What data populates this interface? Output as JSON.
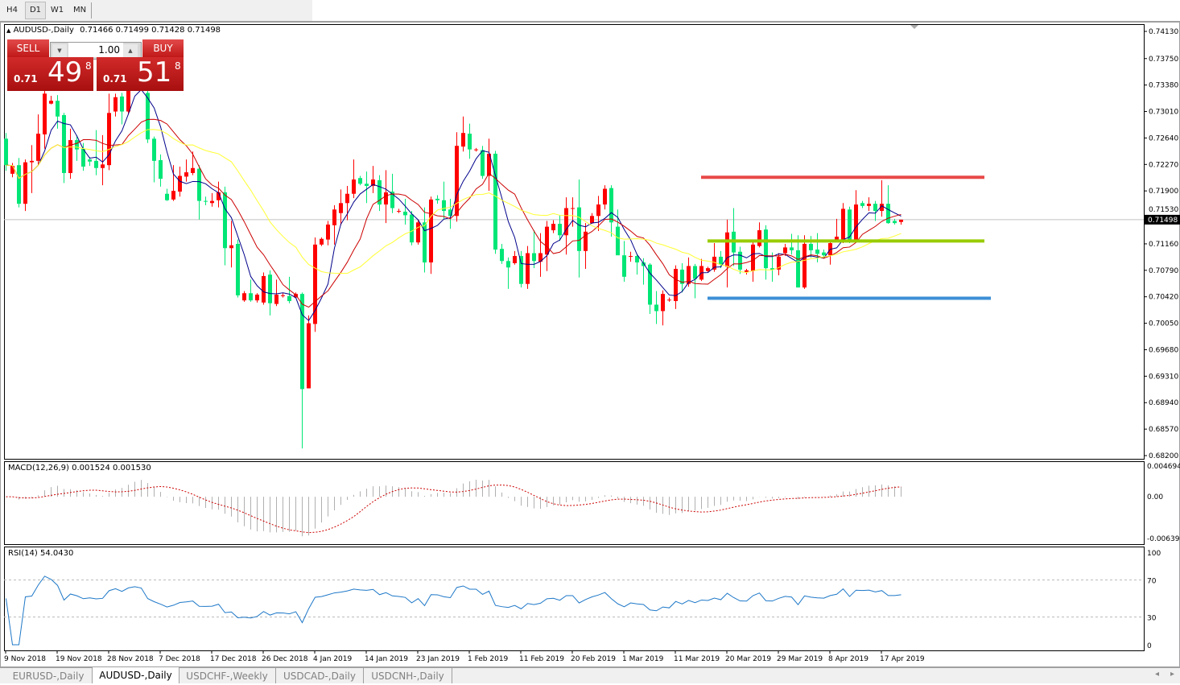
{
  "timeframes": {
    "items": [
      "H4",
      "D1",
      "W1",
      "MN"
    ],
    "active": "D1"
  },
  "chart_header": {
    "symbol": "AUDUSD-,Daily",
    "ohlc": "0.71466 0.71499 0.71428 0.71498"
  },
  "trade_panel": {
    "sell_label": "SELL",
    "buy_label": "BUY",
    "lot": "1.00",
    "sell_price": {
      "prefix": "0.71",
      "big": "49",
      "sup": "8"
    },
    "buy_price": {
      "prefix": "0.71",
      "big": "51",
      "sup": "8"
    }
  },
  "colors": {
    "bull": "#ff0000",
    "bear": "#00e676",
    "ma_fast": "#00008b",
    "ma_mid": "#cc0000",
    "ma_slow": "#ffff33",
    "resistance": "#e84848",
    "support_mid": "#99cc00",
    "support_low": "#3d8fd6",
    "macd_hist": "#b0b0b0",
    "macd_signal": "#cc0000",
    "rsi": "#1e78c8"
  },
  "chart_data": [
    {
      "type": "candlestick",
      "title": "AUDUSD-,Daily",
      "ylim": [
        0.682,
        0.7413
      ],
      "y_ticks": [
        "0.74130",
        "0.73750",
        "0.73380",
        "0.73010",
        "0.72640",
        "0.72270",
        "0.71900",
        "0.71530",
        "0.71160",
        "0.70790",
        "0.70420",
        "0.70050",
        "0.69680",
        "0.69310",
        "0.68940",
        "0.68570",
        "0.68200"
      ],
      "current_price": "0.71498",
      "x_labels": [
        "9 Nov 2018",
        "19 Nov 2018",
        "28 Nov 2018",
        "7 Dec 2018",
        "17 Dec 2018",
        "26 Dec 2018",
        "4 Jan 2019",
        "14 Jan 2019",
        "23 Jan 2019",
        "1 Feb 2019",
        "11 Feb 2019",
        "20 Feb 2019",
        "1 Mar 2019",
        "11 Mar 2019",
        "20 Mar 2019",
        "29 Mar 2019",
        "8 Apr 2019",
        "17 Apr 2019"
      ],
      "ohlc": [
        [
          0.7263,
          0.7271,
          0.7218,
          0.7226
        ],
        [
          0.7214,
          0.7229,
          0.7209,
          0.7225
        ],
        [
          0.7226,
          0.7236,
          0.7167,
          0.7172
        ],
        [
          0.7172,
          0.7234,
          0.7162,
          0.723
        ],
        [
          0.723,
          0.7254,
          0.7187,
          0.7232
        ],
        [
          0.7232,
          0.7297,
          0.7226,
          0.727
        ],
        [
          0.7269,
          0.7339,
          0.7249,
          0.7326
        ],
        [
          0.7312,
          0.7323,
          0.7311,
          0.7316
        ],
        [
          0.7316,
          0.7324,
          0.7277,
          0.7294
        ],
        [
          0.7296,
          0.7299,
          0.7201,
          0.7215
        ],
        [
          0.7215,
          0.7277,
          0.7207,
          0.7261
        ],
        [
          0.7261,
          0.7268,
          0.7232,
          0.7248
        ],
        [
          0.7249,
          0.7257,
          0.7218,
          0.7224
        ],
        [
          0.7234,
          0.7237,
          0.7225,
          0.7231
        ],
        [
          0.7232,
          0.7275,
          0.7212,
          0.7222
        ],
        [
          0.7222,
          0.7268,
          0.7198,
          0.7227
        ],
        [
          0.7226,
          0.7326,
          0.7219,
          0.7299
        ],
        [
          0.7301,
          0.7326,
          0.7294,
          0.7321
        ],
        [
          0.7322,
          0.7327,
          0.7283,
          0.7301
        ],
        [
          0.7301,
          0.7344,
          0.7297,
          0.7339
        ],
        [
          0.7339,
          0.7361,
          0.7333,
          0.7353
        ],
        [
          0.7353,
          0.7358,
          0.7335,
          0.7344
        ],
        [
          0.7327,
          0.7333,
          0.7257,
          0.7262
        ],
        [
          0.7263,
          0.7266,
          0.7202,
          0.7232
        ],
        [
          0.7233,
          0.7241,
          0.7196,
          0.7207
        ],
        [
          0.7186,
          0.7193,
          0.7176,
          0.7177
        ],
        [
          0.7178,
          0.7226,
          0.7176,
          0.719
        ],
        [
          0.7189,
          0.7224,
          0.7182,
          0.7211
        ],
        [
          0.721,
          0.7234,
          0.7203,
          0.7216
        ],
        [
          0.7215,
          0.7245,
          0.7212,
          0.7222
        ],
        [
          0.7221,
          0.7226,
          0.715,
          0.7176
        ],
        [
          0.7176,
          0.7182,
          0.717,
          0.7175
        ],
        [
          0.7173,
          0.7187,
          0.7168,
          0.7176
        ],
        [
          0.7177,
          0.7203,
          0.7167,
          0.7188
        ],
        [
          0.7188,
          0.7196,
          0.7086,
          0.711
        ],
        [
          0.711,
          0.7148,
          0.7083,
          0.7114
        ],
        [
          0.7116,
          0.7122,
          0.7041,
          0.7044
        ],
        [
          0.7037,
          0.705,
          0.7035,
          0.7047
        ],
        [
          0.7047,
          0.7066,
          0.7035,
          0.7037
        ],
        [
          0.7037,
          0.7047,
          0.7034,
          0.7045
        ],
        [
          0.7034,
          0.7076,
          0.7031,
          0.7071
        ],
        [
          0.7073,
          0.7079,
          0.7016,
          0.7033
        ],
        [
          0.7032,
          0.7066,
          0.7029,
          0.7045
        ],
        [
          0.7044,
          0.7047,
          0.7041,
          0.7044
        ],
        [
          0.7043,
          0.707,
          0.7033,
          0.7036
        ],
        [
          0.7041,
          0.7048,
          0.704,
          0.7046
        ],
        [
          0.7046,
          0.7048,
          0.683,
          0.6913
        ],
        [
          0.6914,
          0.7016,
          0.6914,
          0.7005
        ],
        [
          0.7004,
          0.7125,
          0.6993,
          0.7115
        ],
        [
          0.7115,
          0.7125,
          0.7113,
          0.7123
        ],
        [
          0.7122,
          0.7148,
          0.7114,
          0.7143
        ],
        [
          0.7142,
          0.717,
          0.7115,
          0.7164
        ],
        [
          0.7159,
          0.7192,
          0.7142,
          0.7173
        ],
        [
          0.7173,
          0.7197,
          0.7149,
          0.7186
        ],
        [
          0.7186,
          0.7234,
          0.718,
          0.7206
        ],
        [
          0.7208,
          0.7211,
          0.7198,
          0.72
        ],
        [
          0.72,
          0.7217,
          0.7173,
          0.7197
        ],
        [
          0.7197,
          0.7225,
          0.7187,
          0.7206
        ],
        [
          0.7205,
          0.7212,
          0.7162,
          0.7171
        ],
        [
          0.7171,
          0.7219,
          0.7145,
          0.7188
        ],
        [
          0.7189,
          0.7214,
          0.7159,
          0.7166
        ],
        [
          0.7162,
          0.7165,
          0.7159,
          0.7162
        ],
        [
          0.7161,
          0.7179,
          0.7143,
          0.7156
        ],
        [
          0.7157,
          0.7162,
          0.7114,
          0.7118
        ],
        [
          0.7118,
          0.715,
          0.7115,
          0.7146
        ],
        [
          0.7146,
          0.7167,
          0.7076,
          0.709
        ],
        [
          0.709,
          0.7182,
          0.7074,
          0.7178
        ],
        [
          0.7179,
          0.7184,
          0.7172,
          0.7177
        ],
        [
          0.7177,
          0.7203,
          0.7151,
          0.7162
        ],
        [
          0.7164,
          0.7179,
          0.7137,
          0.7155
        ],
        [
          0.7155,
          0.7272,
          0.7147,
          0.7253
        ],
        [
          0.7252,
          0.7294,
          0.7245,
          0.7271
        ],
        [
          0.727,
          0.7284,
          0.7235,
          0.7248
        ],
        [
          0.7248,
          0.725,
          0.7245,
          0.7248
        ],
        [
          0.7247,
          0.7253,
          0.7207,
          0.7211
        ],
        [
          0.7211,
          0.7263,
          0.719,
          0.7242
        ],
        [
          0.7242,
          0.7246,
          0.7102,
          0.7108
        ],
        [
          0.7109,
          0.7116,
          0.7088,
          0.7092
        ],
        [
          0.7092,
          0.7097,
          0.7053,
          0.7083
        ],
        [
          0.7089,
          0.7106,
          0.7087,
          0.7099
        ],
        [
          0.7099,
          0.7106,
          0.7055,
          0.706
        ],
        [
          0.706,
          0.7113,
          0.7053,
          0.7103
        ],
        [
          0.7103,
          0.7135,
          0.7082,
          0.7092
        ],
        [
          0.7091,
          0.7131,
          0.707,
          0.7103
        ],
        [
          0.7101,
          0.7148,
          0.7078,
          0.714
        ],
        [
          0.7135,
          0.7149,
          0.7131,
          0.7144
        ],
        [
          0.7144,
          0.7156,
          0.712,
          0.7128
        ],
        [
          0.7128,
          0.7181,
          0.7101,
          0.7166
        ],
        [
          0.7166,
          0.7181,
          0.714,
          0.7166
        ],
        [
          0.7167,
          0.7206,
          0.7069,
          0.7106
        ],
        [
          0.7106,
          0.7145,
          0.7081,
          0.7133
        ],
        [
          0.7145,
          0.7159,
          0.7144,
          0.7155
        ],
        [
          0.7155,
          0.7183,
          0.7134,
          0.7171
        ],
        [
          0.7171,
          0.7198,
          0.7164,
          0.7193
        ],
        [
          0.7194,
          0.7198,
          0.7126,
          0.7146
        ],
        [
          0.714,
          0.7164,
          0.7101,
          0.71
        ],
        [
          0.71,
          0.712,
          0.7063,
          0.707
        ],
        [
          0.7098,
          0.7105,
          0.7091,
          0.7099
        ],
        [
          0.7099,
          0.7102,
          0.7073,
          0.709
        ],
        [
          0.709,
          0.7096,
          0.7059,
          0.7085
        ],
        [
          0.7087,
          0.7089,
          0.7018,
          0.7031
        ],
        [
          0.7031,
          0.705,
          0.7004,
          0.7022
        ],
        [
          0.7022,
          0.7051,
          0.7002,
          0.7046
        ],
        [
          0.7038,
          0.7041,
          0.7035,
          0.7038
        ],
        [
          0.7036,
          0.7086,
          0.7025,
          0.7081
        ],
        [
          0.708,
          0.7089,
          0.7048,
          0.706
        ],
        [
          0.706,
          0.7097,
          0.7056,
          0.7085
        ],
        [
          0.7085,
          0.7088,
          0.704,
          0.7067
        ],
        [
          0.7066,
          0.7095,
          0.7064,
          0.7085
        ],
        [
          0.7078,
          0.7084,
          0.7076,
          0.7082
        ],
        [
          0.708,
          0.7117,
          0.7077,
          0.7098
        ],
        [
          0.7098,
          0.7106,
          0.7082,
          0.7087
        ],
        [
          0.7084,
          0.715,
          0.7055,
          0.7132
        ],
        [
          0.7133,
          0.7166,
          0.7085,
          0.7104
        ],
        [
          0.7105,
          0.7112,
          0.7074,
          0.708
        ],
        [
          0.7076,
          0.7081,
          0.7073,
          0.7079
        ],
        [
          0.7078,
          0.712,
          0.7063,
          0.7115
        ],
        [
          0.7113,
          0.7146,
          0.7111,
          0.7135
        ],
        [
          0.7136,
          0.7142,
          0.7066,
          0.7082
        ],
        [
          0.7082,
          0.7104,
          0.7063,
          0.708
        ],
        [
          0.708,
          0.7103,
          0.7072,
          0.7098
        ],
        [
          0.7103,
          0.7116,
          0.7099,
          0.7111
        ],
        [
          0.7111,
          0.713,
          0.7101,
          0.7107
        ],
        [
          0.7107,
          0.7128,
          0.7055,
          0.7055
        ],
        [
          0.7055,
          0.7128,
          0.7053,
          0.7116
        ],
        [
          0.7116,
          0.7127,
          0.7097,
          0.7107
        ],
        [
          0.7108,
          0.7131,
          0.709,
          0.7102
        ],
        [
          0.7104,
          0.7108,
          0.7097,
          0.71
        ],
        [
          0.71,
          0.712,
          0.7087,
          0.7117
        ],
        [
          0.7122,
          0.7151,
          0.712,
          0.7126
        ],
        [
          0.7122,
          0.7173,
          0.7117,
          0.7165
        ],
        [
          0.7164,
          0.7168,
          0.7117,
          0.712
        ],
        [
          0.712,
          0.7191,
          0.7118,
          0.7171
        ],
        [
          0.7173,
          0.7176,
          0.7166,
          0.7169
        ],
        [
          0.7169,
          0.7181,
          0.7162,
          0.7172
        ],
        [
          0.7172,
          0.7176,
          0.7148,
          0.7162
        ],
        [
          0.7162,
          0.7205,
          0.7154,
          0.7172
        ],
        [
          0.7172,
          0.7198,
          0.7144,
          0.7145
        ],
        [
          0.7148,
          0.7151,
          0.7143,
          0.7145
        ],
        [
          0.71466,
          0.71499,
          0.71428,
          0.71498
        ]
      ],
      "horizontal_lines": [
        {
          "price": 0.7209,
          "color": "#e84848"
        },
        {
          "price": 0.712,
          "color": "#99cc00"
        },
        {
          "price": 0.704,
          "color": "#3d8fd6"
        }
      ],
      "grid": false
    },
    {
      "type": "bar+line",
      "label": "MACD(12,26,9) 0.001524 0.001530",
      "ylim": [
        -0.00639,
        0.004694
      ],
      "y_ticks": [
        "0.004694",
        "0.00",
        "-0.00639"
      ]
    },
    {
      "type": "line",
      "label": "RSI(14) 54.0430",
      "ylim": [
        0,
        100
      ],
      "y_ticks": [
        "100",
        "70",
        "30",
        "0"
      ],
      "levels": [
        70,
        30
      ]
    }
  ],
  "symbol_tabs": {
    "items": [
      "EURUSD-,Daily",
      "AUDUSD-,Daily",
      "USDCHF-,Weekly",
      "USDCAD-,Daily",
      "USDCNH-,Daily"
    ],
    "active": "AUDUSD-,Daily"
  },
  "scroll": {
    "left": "◂",
    "right": "▸"
  }
}
